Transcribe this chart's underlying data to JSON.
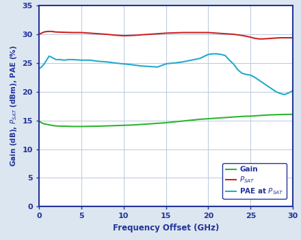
{
  "xlabel": "Frequency Offset (GHz)",
  "xlim": [
    0,
    30
  ],
  "ylim": [
    0,
    35
  ],
  "xticks": [
    0,
    5,
    10,
    15,
    20,
    25,
    30
  ],
  "yticks": [
    0,
    5,
    10,
    15,
    20,
    25,
    30,
    35
  ],
  "gain_color": "#2db52d",
  "psat_color": "#cc2222",
  "pae_color": "#22aacc",
  "background_color": "#dce6f0",
  "plot_bg": "#ffffff",
  "spine_color": "#223399",
  "tick_color": "#223399",
  "grid_color": "#b8c8dc",
  "label_color": "#223399",
  "gain_x": [
    0.0,
    0.3,
    0.6,
    1.0,
    1.5,
    2.0,
    2.5,
    3.0,
    4.0,
    5.0,
    6.0,
    7.0,
    8.0,
    9.0,
    10.0,
    11.0,
    12.0,
    13.0,
    14.0,
    15.0,
    16.0,
    17.0,
    18.0,
    19.0,
    20.0,
    21.0,
    22.0,
    23.0,
    24.0,
    25.0,
    26.0,
    27.0,
    28.0,
    29.0,
    30.0
  ],
  "gain_y": [
    14.9,
    14.6,
    14.4,
    14.3,
    14.15,
    14.05,
    14.0,
    14.0,
    13.95,
    13.95,
    13.98,
    14.0,
    14.05,
    14.1,
    14.15,
    14.2,
    14.3,
    14.4,
    14.5,
    14.6,
    14.75,
    14.9,
    15.05,
    15.2,
    15.3,
    15.4,
    15.5,
    15.6,
    15.7,
    15.75,
    15.85,
    15.95,
    16.0,
    16.05,
    16.05
  ],
  "psat_x": [
    0.0,
    0.3,
    0.6,
    1.0,
    1.5,
    2.0,
    3.0,
    4.0,
    5.0,
    6.0,
    7.0,
    8.0,
    9.0,
    10.0,
    11.0,
    12.0,
    13.0,
    14.0,
    15.0,
    16.0,
    17.0,
    18.0,
    19.0,
    20.0,
    21.0,
    21.5,
    22.0,
    23.0,
    24.0,
    24.5,
    25.0,
    25.5,
    26.0,
    26.5,
    27.0,
    27.5,
    28.0,
    28.5,
    29.0,
    29.5,
    30.0
  ],
  "psat_y": [
    30.0,
    30.2,
    30.4,
    30.5,
    30.5,
    30.4,
    30.35,
    30.3,
    30.3,
    30.2,
    30.1,
    30.0,
    29.85,
    29.75,
    29.8,
    29.9,
    30.0,
    30.1,
    30.2,
    30.25,
    30.3,
    30.3,
    30.3,
    30.3,
    30.2,
    30.15,
    30.1,
    30.0,
    29.8,
    29.65,
    29.5,
    29.3,
    29.2,
    29.2,
    29.25,
    29.3,
    29.35,
    29.4,
    29.4,
    29.4,
    29.4
  ],
  "pae_x": [
    0.0,
    0.3,
    0.6,
    0.9,
    1.2,
    1.5,
    2.0,
    2.5,
    3.0,
    3.5,
    4.0,
    5.0,
    6.0,
    7.0,
    8.0,
    9.0,
    10.0,
    11.0,
    12.0,
    13.0,
    14.0,
    15.0,
    15.5,
    16.0,
    17.0,
    18.0,
    19.0,
    20.0,
    20.5,
    21.0,
    21.5,
    22.0,
    22.5,
    23.0,
    23.5,
    24.0,
    24.5,
    25.0,
    25.5,
    26.0,
    26.5,
    27.0,
    27.5,
    28.0,
    28.5,
    29.0,
    29.5,
    30.0
  ],
  "pae_y": [
    24.0,
    24.3,
    24.8,
    25.5,
    26.2,
    26.0,
    25.6,
    25.6,
    25.5,
    25.6,
    25.6,
    25.5,
    25.5,
    25.3,
    25.2,
    25.0,
    24.85,
    24.7,
    24.5,
    24.4,
    24.3,
    24.85,
    24.95,
    25.0,
    25.2,
    25.5,
    25.8,
    26.5,
    26.6,
    26.6,
    26.5,
    26.3,
    25.5,
    24.8,
    23.8,
    23.2,
    23.0,
    22.9,
    22.5,
    22.0,
    21.5,
    21.0,
    20.5,
    20.0,
    19.7,
    19.5,
    19.8,
    20.2
  ]
}
